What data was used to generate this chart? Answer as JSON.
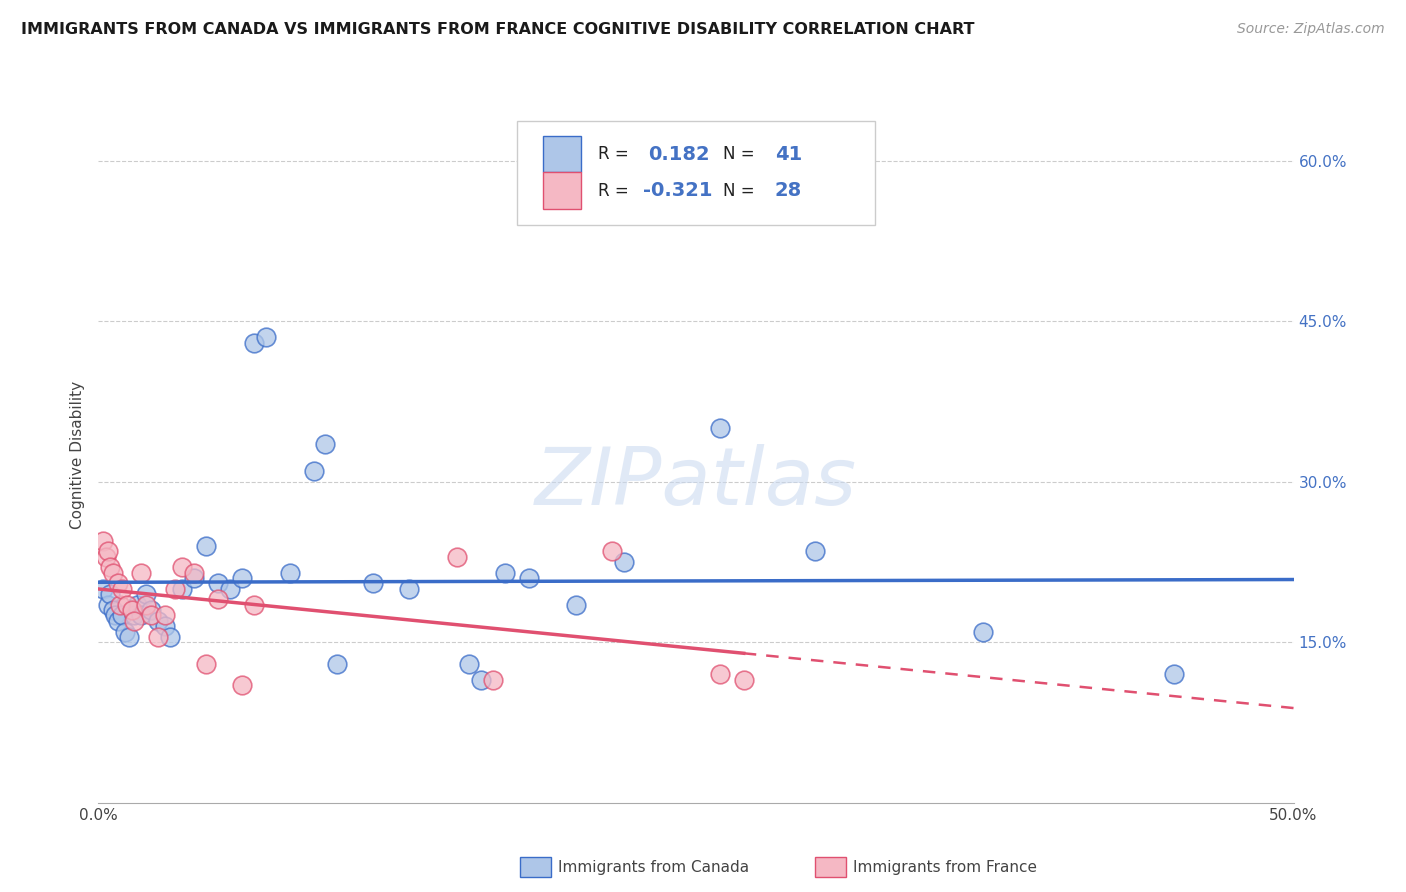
{
  "title": "IMMIGRANTS FROM CANADA VS IMMIGRANTS FROM FRANCE COGNITIVE DISABILITY CORRELATION CHART",
  "source": "Source: ZipAtlas.com",
  "ylabel": "Cognitive Disability",
  "xlim": [
    0.0,
    0.5
  ],
  "ylim": [
    0.0,
    0.65
  ],
  "xtick_labels": [
    "0.0%",
    "",
    "",
    "",
    "",
    "50.0%"
  ],
  "xtick_values": [
    0.0,
    0.1,
    0.2,
    0.3,
    0.4,
    0.5
  ],
  "ytick_labels": [
    "15.0%",
    "30.0%",
    "45.0%",
    "60.0%"
  ],
  "ytick_values": [
    0.15,
    0.3,
    0.45,
    0.6
  ],
  "canada_R": 0.182,
  "canada_N": 41,
  "france_R": -0.321,
  "france_N": 28,
  "canada_color": "#aec6e8",
  "france_color": "#f5b8c4",
  "canada_line_color": "#3a6cc8",
  "france_line_color": "#e05070",
  "watermark": "ZIPatlas",
  "legend_labels": [
    "Immigrants from Canada",
    "Immigrants from France"
  ],
  "canada_x": [
    0.002,
    0.004,
    0.005,
    0.006,
    0.007,
    0.008,
    0.01,
    0.011,
    0.013,
    0.015,
    0.016,
    0.018,
    0.02,
    0.022,
    0.025,
    0.028,
    0.03,
    0.035,
    0.04,
    0.045,
    0.05,
    0.055,
    0.06,
    0.065,
    0.07,
    0.08,
    0.09,
    0.095,
    0.1,
    0.115,
    0.13,
    0.155,
    0.16,
    0.17,
    0.18,
    0.2,
    0.22,
    0.26,
    0.3,
    0.37,
    0.45
  ],
  "canada_y": [
    0.2,
    0.185,
    0.195,
    0.18,
    0.175,
    0.17,
    0.175,
    0.16,
    0.155,
    0.175,
    0.185,
    0.175,
    0.195,
    0.18,
    0.17,
    0.165,
    0.155,
    0.2,
    0.21,
    0.24,
    0.205,
    0.2,
    0.21,
    0.43,
    0.435,
    0.215,
    0.31,
    0.335,
    0.13,
    0.205,
    0.2,
    0.13,
    0.115,
    0.215,
    0.21,
    0.185,
    0.225,
    0.35,
    0.235,
    0.16,
    0.12
  ],
  "france_x": [
    0.002,
    0.003,
    0.004,
    0.005,
    0.006,
    0.008,
    0.009,
    0.01,
    0.012,
    0.014,
    0.015,
    0.018,
    0.02,
    0.022,
    0.025,
    0.028,
    0.032,
    0.035,
    0.04,
    0.045,
    0.05,
    0.06,
    0.065,
    0.15,
    0.165,
    0.215,
    0.26,
    0.27
  ],
  "france_y": [
    0.245,
    0.23,
    0.235,
    0.22,
    0.215,
    0.205,
    0.185,
    0.2,
    0.185,
    0.18,
    0.17,
    0.215,
    0.185,
    0.175,
    0.155,
    0.175,
    0.2,
    0.22,
    0.215,
    0.13,
    0.19,
    0.11,
    0.185,
    0.23,
    0.115,
    0.235,
    0.12,
    0.115
  ]
}
